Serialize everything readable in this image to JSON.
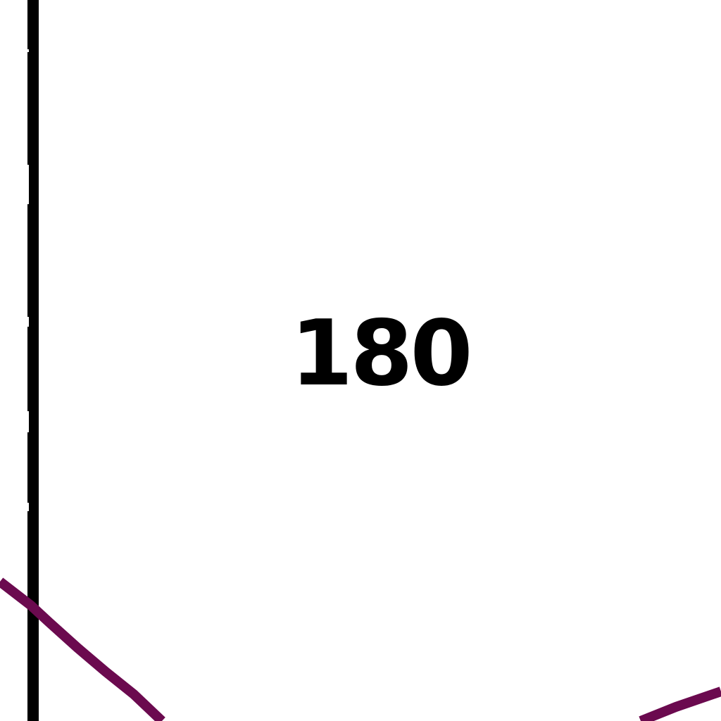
{
  "map": {
    "number_label": "180",
    "colors": {
      "background": "#ffffff",
      "boundary_line": "#000000",
      "route_line": "#6b0a4f",
      "label": "#000000"
    }
  }
}
